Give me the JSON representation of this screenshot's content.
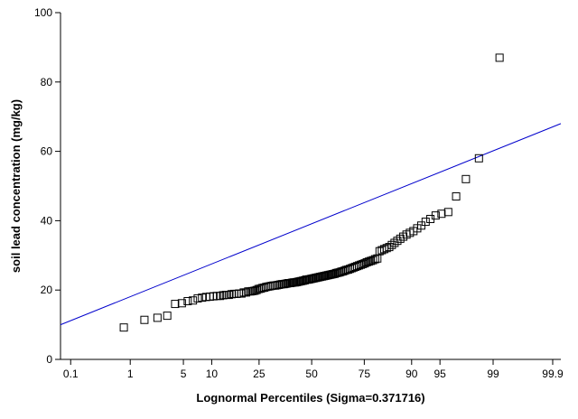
{
  "chart_data": {
    "type": "scatter",
    "title": "",
    "xlabel": "Lognormal Percentiles (Sigma=0.371716)",
    "ylabel": "soil lead concentration (mg/kg)",
    "x_scale": "normal-probability",
    "x_ticks": [
      {
        "value": 0.1,
        "label": "0.1"
      },
      {
        "value": 1,
        "label": "1"
      },
      {
        "value": 5,
        "label": "5"
      },
      {
        "value": 10,
        "label": "10"
      },
      {
        "value": 25,
        "label": "25"
      },
      {
        "value": 50,
        "label": "50"
      },
      {
        "value": 75,
        "label": "75"
      },
      {
        "value": 90,
        "label": "90"
      },
      {
        "value": 95,
        "label": "95"
      },
      {
        "value": 99,
        "label": "99"
      },
      {
        "value": 99.9,
        "label": "99.9"
      }
    ],
    "xlim_percent": [
      0.064,
      99.93
    ],
    "y_ticks": [
      0,
      20,
      40,
      60,
      80,
      100
    ],
    "ylim": [
      0,
      100
    ],
    "colors": {
      "points": "#000000",
      "fit_line": "#0000cc",
      "axes": "#000000"
    },
    "fit_line": {
      "name": "lognormal reference line",
      "points": [
        [
          0.064,
          10.0
        ],
        [
          99.93,
          68.0
        ]
      ]
    },
    "series": [
      {
        "name": "soil lead concentration",
        "marker": "open-square",
        "points": [
          [
            0.8,
            9.2
          ],
          [
            1.6,
            11.4
          ],
          [
            2.4,
            12.0
          ],
          [
            3.2,
            12.6
          ],
          [
            4.0,
            16.0
          ],
          [
            4.8,
            16.2
          ],
          [
            5.6,
            16.8
          ],
          [
            6.4,
            17.0
          ],
          [
            7.2,
            17.6
          ],
          [
            8.0,
            17.8
          ],
          [
            8.8,
            18.0
          ],
          [
            9.6,
            18.1
          ],
          [
            10.4,
            18.2
          ],
          [
            11.2,
            18.3
          ],
          [
            12.0,
            18.3
          ],
          [
            12.8,
            18.5
          ],
          [
            13.6,
            18.6
          ],
          [
            14.4,
            18.6
          ],
          [
            15.2,
            18.8
          ],
          [
            16.0,
            18.9
          ],
          [
            16.8,
            18.9
          ],
          [
            17.6,
            19.0
          ],
          [
            18.4,
            19.0
          ],
          [
            19.2,
            19.3
          ],
          [
            20.0,
            19.3
          ],
          [
            20.8,
            19.6
          ],
          [
            21.6,
            19.6
          ],
          [
            22.4,
            19.7
          ],
          [
            23.2,
            19.8
          ],
          [
            24.0,
            20.0
          ],
          [
            24.8,
            20.3
          ],
          [
            25.6,
            20.4
          ],
          [
            26.4,
            20.6
          ],
          [
            27.2,
            20.7
          ],
          [
            28.0,
            20.9
          ],
          [
            28.8,
            21.0
          ],
          [
            29.6,
            21.1
          ],
          [
            30.4,
            21.2
          ],
          [
            31.2,
            21.3
          ],
          [
            32.0,
            21.3
          ],
          [
            32.8,
            21.4
          ],
          [
            33.6,
            21.5
          ],
          [
            34.4,
            21.6
          ],
          [
            35.2,
            21.7
          ],
          [
            36.0,
            21.7
          ],
          [
            36.8,
            21.8
          ],
          [
            37.6,
            21.9
          ],
          [
            38.4,
            22.0
          ],
          [
            39.2,
            22.0
          ],
          [
            40.0,
            22.1
          ],
          [
            40.8,
            22.2
          ],
          [
            41.6,
            22.2
          ],
          [
            42.4,
            22.3
          ],
          [
            43.2,
            22.4
          ],
          [
            44.0,
            22.5
          ],
          [
            44.8,
            22.6
          ],
          [
            45.6,
            22.7
          ],
          [
            46.4,
            22.8
          ],
          [
            47.2,
            23.0
          ],
          [
            48.0,
            23.0
          ],
          [
            48.8,
            23.1
          ],
          [
            49.6,
            23.2
          ],
          [
            50.4,
            23.3
          ],
          [
            51.2,
            23.4
          ],
          [
            52.0,
            23.5
          ],
          [
            52.8,
            23.6
          ],
          [
            53.6,
            23.7
          ],
          [
            54.4,
            23.8
          ],
          [
            55.2,
            23.9
          ],
          [
            56.0,
            24.0
          ],
          [
            56.8,
            24.1
          ],
          [
            57.6,
            24.2
          ],
          [
            58.4,
            24.3
          ],
          [
            59.2,
            24.4
          ],
          [
            60.0,
            24.5
          ],
          [
            60.8,
            24.6
          ],
          [
            61.6,
            24.7
          ],
          [
            62.4,
            24.9
          ],
          [
            63.2,
            25.0
          ],
          [
            64.0,
            25.1
          ],
          [
            64.8,
            25.3
          ],
          [
            65.6,
            25.4
          ],
          [
            66.4,
            25.6
          ],
          [
            67.2,
            25.8
          ],
          [
            68.0,
            25.9
          ],
          [
            68.8,
            26.1
          ],
          [
            69.6,
            26.3
          ],
          [
            70.4,
            26.5
          ],
          [
            71.2,
            26.7
          ],
          [
            72.0,
            26.9
          ],
          [
            72.8,
            27.1
          ],
          [
            73.6,
            27.3
          ],
          [
            74.4,
            27.5
          ],
          [
            75.2,
            27.7
          ],
          [
            76.0,
            28.0
          ],
          [
            76.8,
            28.2
          ],
          [
            77.6,
            28.4
          ],
          [
            78.4,
            28.6
          ],
          [
            79.2,
            28.9
          ],
          [
            80.0,
            29.1
          ],
          [
            80.8,
            31.2
          ],
          [
            81.6,
            31.5
          ],
          [
            82.4,
            31.8
          ],
          [
            83.2,
            32.1
          ],
          [
            84.0,
            32.4
          ],
          [
            84.8,
            33.0
          ],
          [
            85.6,
            33.6
          ],
          [
            86.4,
            34.2
          ],
          [
            87.2,
            34.8
          ],
          [
            88.0,
            35.4
          ],
          [
            88.8,
            36.0
          ],
          [
            89.6,
            36.5
          ],
          [
            90.4,
            37.0
          ],
          [
            91.2,
            37.8
          ],
          [
            92.0,
            38.6
          ],
          [
            92.8,
            39.7
          ],
          [
            93.6,
            40.5
          ],
          [
            94.4,
            41.5
          ],
          [
            95.2,
            42.0
          ],
          [
            96.0,
            42.5
          ],
          [
            96.8,
            47.0
          ],
          [
            97.6,
            52.0
          ],
          [
            98.4,
            58.0
          ],
          [
            99.2,
            87.0
          ]
        ]
      }
    ]
  }
}
